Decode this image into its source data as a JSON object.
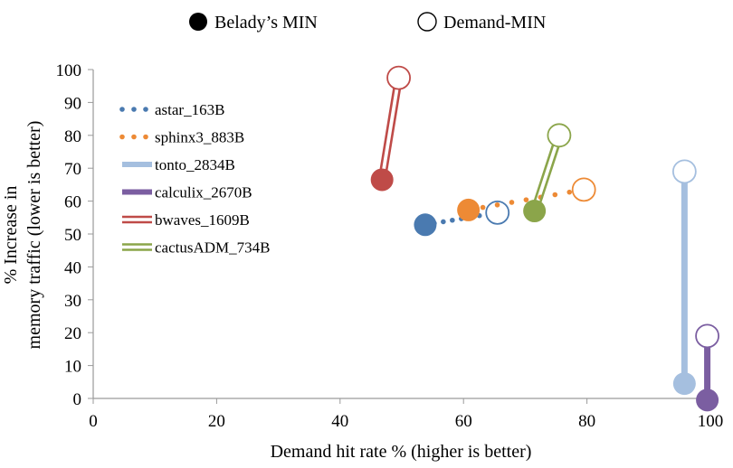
{
  "chart_data": {
    "type": "scatter",
    "title": "",
    "xlabel": "Demand hit rate % (higher is better)",
    "ylabel_lines": [
      "% Increase in",
      "memory traffic (lower is better)"
    ],
    "xlim": [
      0,
      100
    ],
    "ylim": [
      0,
      100
    ],
    "x_ticks": [
      0,
      20,
      40,
      60,
      80,
      100
    ],
    "y_ticks": [
      0,
      10,
      20,
      30,
      40,
      50,
      60,
      70,
      80,
      90,
      100
    ],
    "grid": false,
    "top_legend": {
      "placement": "top-center",
      "items": [
        {
          "label": "Belady’s MIN",
          "marker": "filled-circle"
        },
        {
          "label": "Demand-MIN",
          "marker": "open-circle"
        }
      ]
    },
    "series_legend_placement": "top-left",
    "series": [
      {
        "name": "astar_163B",
        "color": "#4a7ab0",
        "line_style": "dotted",
        "belady_min": {
          "x": 53.8,
          "y": 52.8
        },
        "demand_min": {
          "x": 65.5,
          "y": 56.5
        }
      },
      {
        "name": "sphinx3_883B",
        "color": "#ed8a35",
        "line_style": "dotted",
        "belady_min": {
          "x": 60.8,
          "y": 57.3
        },
        "demand_min": {
          "x": 79.5,
          "y": 63.5
        }
      },
      {
        "name": "tonto_2834B",
        "color": "#a5bfdf",
        "line_style": "thick",
        "belady_min": {
          "x": 95.8,
          "y": 4.5
        },
        "demand_min": {
          "x": 95.8,
          "y": 69
        }
      },
      {
        "name": "calculix_2670B",
        "color": "#7b5ea1",
        "line_style": "thick",
        "belady_min": {
          "x": 99.5,
          "y": -0.5
        },
        "demand_min": {
          "x": 99.5,
          "y": 19
        }
      },
      {
        "name": "bwaves_1609B",
        "color": "#bf4b48",
        "line_style": "double",
        "belady_min": {
          "x": 46.8,
          "y": 66.5
        },
        "demand_min": {
          "x": 49.5,
          "y": 97.5
        }
      },
      {
        "name": "cactusADM_734B",
        "color": "#8ba54a",
        "line_style": "double",
        "belady_min": {
          "x": 71.5,
          "y": 57
        },
        "demand_min": {
          "x": 75.5,
          "y": 80
        }
      }
    ]
  }
}
